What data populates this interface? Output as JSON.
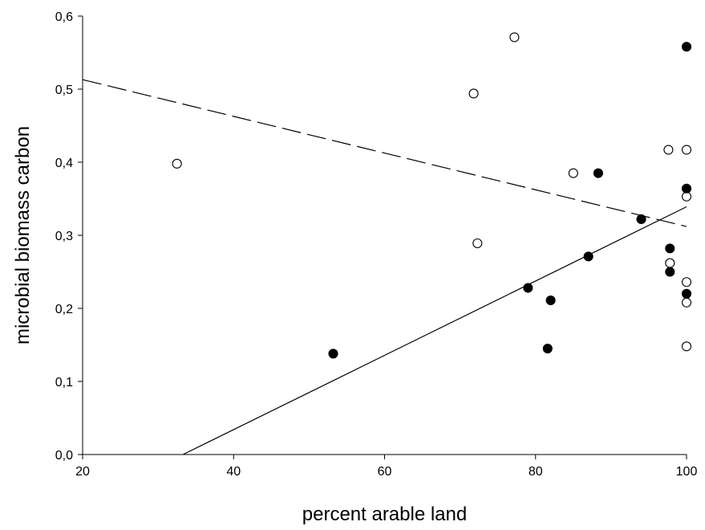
{
  "chart_data": {
    "type": "scatter",
    "title": "",
    "xlabel": "percent arable land",
    "ylabel": "microbial biomass carbon",
    "xlim": [
      20,
      100
    ],
    "ylim": [
      0.0,
      0.6
    ],
    "x_ticks": [
      "20",
      "40",
      "60",
      "80",
      "100"
    ],
    "y_ticks": [
      "0,0",
      "0,1",
      "0,2",
      "0,3",
      "0,4",
      "0,5",
      "0,6"
    ],
    "x_tick_values": [
      20,
      40,
      60,
      80,
      100
    ],
    "y_tick_values": [
      0.0,
      0.1,
      0.2,
      0.3,
      0.4,
      0.5,
      0.6
    ],
    "grid": false,
    "legend": "none",
    "series": [
      {
        "marker": "open-circle",
        "x": [
          32.5,
          71.8,
          72.3,
          77.2,
          85.0,
          97.6,
          97.8,
          100,
          100,
          100,
          100,
          100
        ],
        "y": [
          0.398,
          0.494,
          0.289,
          0.571,
          0.385,
          0.417,
          0.262,
          0.417,
          0.353,
          0.236,
          0.208,
          0.148
        ],
        "trendline": {
          "style": "dashed",
          "x": [
            20,
            100
          ],
          "y": [
            0.513,
            0.312
          ]
        }
      },
      {
        "marker": "filled-circle",
        "x": [
          53.2,
          79.0,
          81.6,
          82.0,
          87.0,
          88.3,
          94.0,
          97.8,
          97.8,
          100,
          100,
          100
        ],
        "y": [
          0.138,
          0.228,
          0.145,
          0.211,
          0.271,
          0.385,
          0.322,
          0.282,
          0.25,
          0.558,
          0.364,
          0.22
        ],
        "trendline": {
          "style": "solid",
          "x": [
            33.3,
            100
          ],
          "y": [
            0.0,
            0.339
          ]
        }
      }
    ],
    "colors": {
      "axis": "#000000",
      "marker_fill": "#000000",
      "open_fill": "#ffffff"
    }
  }
}
